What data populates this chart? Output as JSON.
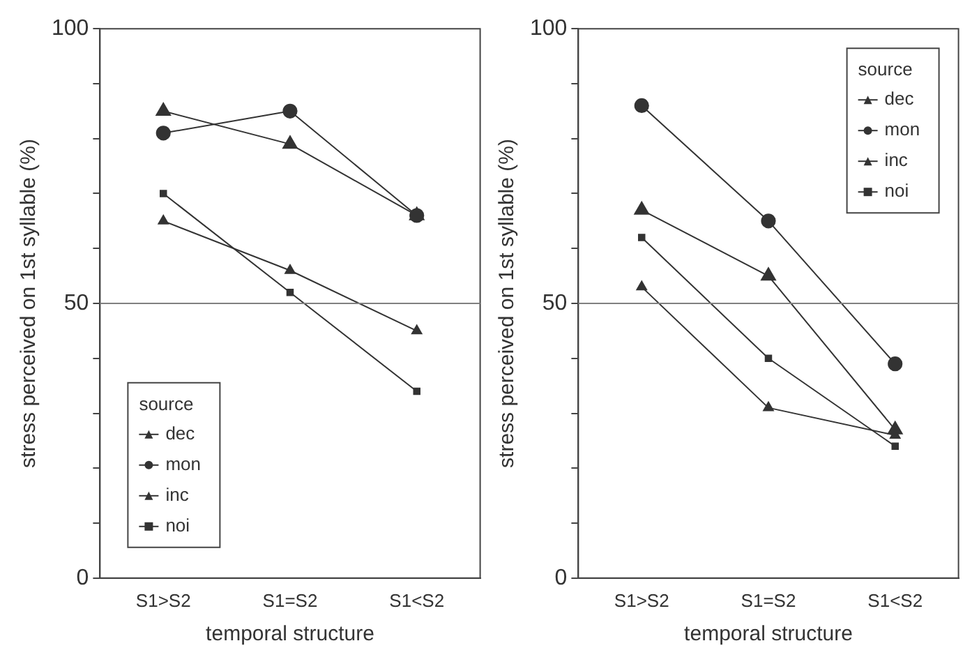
{
  "chart_data": [
    {
      "type": "line",
      "xlabel": "temporal structure",
      "ylabel": "stress perceived on 1st syllable (%)",
      "categories": [
        "S1>S2",
        "S1=S2",
        "S1<S2"
      ],
      "ylim": [
        0,
        100
      ],
      "yticks": [
        0,
        {
          "value": 10,
          "label": null
        },
        {
          "value": 20,
          "label": null
        },
        {
          "value": 30,
          "label": null
        },
        {
          "value": 40,
          "label": null
        },
        50,
        {
          "value": 60,
          "label": null
        },
        {
          "value": 70,
          "label": null
        },
        {
          "value": 80,
          "label": null
        },
        {
          "value": 90,
          "label": null
        },
        100
      ],
      "grid": false,
      "legend": "bottom left",
      "legend_title": "source",
      "ref_lines": [
        {
          "axis": "y",
          "value": 50,
          "color": "#808080"
        }
      ],
      "series": [
        {
          "name": "dec",
          "color": "#333333",
          "marker": "triangle",
          "values": [
            85,
            79,
            66
          ]
        },
        {
          "name": "mon",
          "color": "#333333",
          "marker": "circle",
          "values": [
            81,
            85,
            66
          ]
        },
        {
          "name": "inc",
          "color": "#333333",
          "marker": "triangle",
          "values": [
            65,
            56,
            45
          ]
        },
        {
          "name": "noi",
          "color": "#333333",
          "marker": "square",
          "values": [
            70,
            52,
            34
          ]
        }
      ]
    },
    {
      "type": "line",
      "xlabel": "temporal structure",
      "ylabel": "stress perceived on 1st syllable (%)",
      "categories": [
        "S1>S2",
        "S1=S2",
        "S1<S2"
      ],
      "ylim": [
        0,
        100
      ],
      "yticks": [
        0,
        {
          "value": 10,
          "label": null
        },
        {
          "value": 20,
          "label": null
        },
        {
          "value": 30,
          "label": null
        },
        {
          "value": 40,
          "label": null
        },
        50,
        {
          "value": 60,
          "label": null
        },
        {
          "value": 70,
          "label": null
        },
        {
          "value": 80,
          "label": null
        },
        {
          "value": 90,
          "label": null
        },
        100
      ],
      "grid": false,
      "legend": "top right",
      "legend_title": "source",
      "ref_lines": [
        {
          "axis": "y",
          "value": 50,
          "color": "#808080"
        }
      ],
      "series": [
        {
          "name": "dec",
          "color": "#333333",
          "marker": "triangle",
          "values": [
            67,
            55,
            27
          ]
        },
        {
          "name": "mon",
          "color": "#333333",
          "marker": "circle",
          "values": [
            86,
            65,
            39
          ]
        },
        {
          "name": "inc",
          "color": "#333333",
          "marker": "triangle",
          "values": [
            53,
            31,
            26
          ]
        },
        {
          "name": "noi",
          "color": "#333333",
          "marker": "square",
          "values": [
            62,
            40,
            24
          ]
        }
      ]
    }
  ]
}
